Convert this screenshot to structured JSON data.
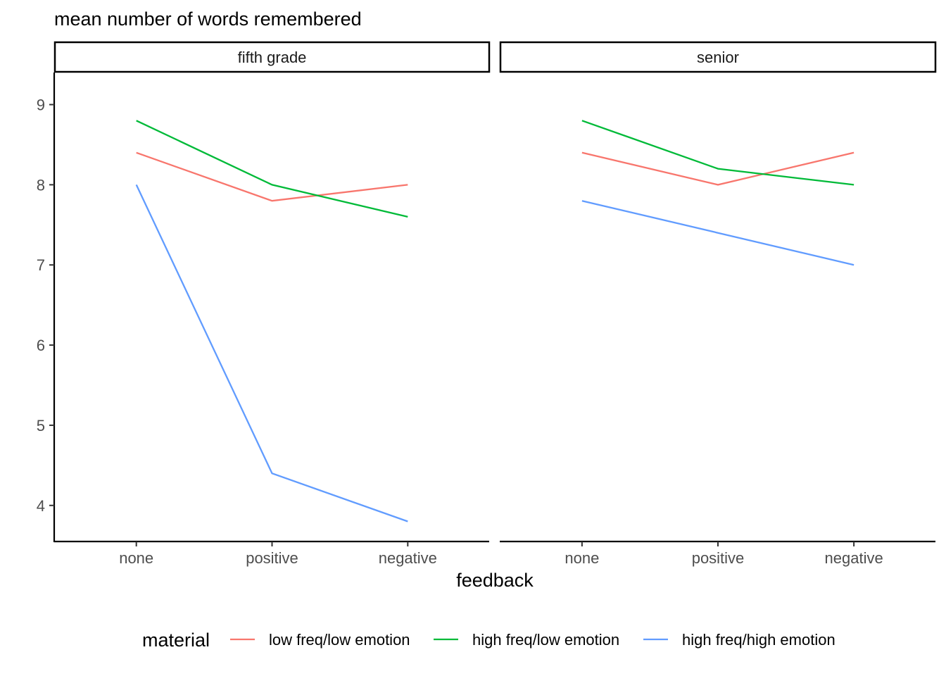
{
  "chart_data": {
    "type": "line",
    "title": "mean number of words remembered",
    "xlabel": "feedback",
    "ylabel": "",
    "ylim": [
      3.55,
      9.4
    ],
    "yticks": [
      4,
      5,
      6,
      7,
      8,
      9
    ],
    "categories": [
      "none",
      "positive",
      "negative"
    ],
    "facet_by": "",
    "legend": {
      "title": "material",
      "position": "bottom",
      "entries": [
        "low freq/low emotion",
        "high freq/low emotion",
        "high freq/high emotion"
      ]
    },
    "colors": {
      "low freq/low emotion": "#F8766D",
      "high freq/low emotion": "#00BA38",
      "high freq/high emotion": "#619CFF"
    },
    "panels": [
      {
        "strip": "fifth grade",
        "series": [
          {
            "name": "low freq/low emotion",
            "values": [
              8.4,
              7.8,
              8.0
            ]
          },
          {
            "name": "high freq/low emotion",
            "values": [
              8.8,
              8.0,
              7.6
            ]
          },
          {
            "name": "high freq/high emotion",
            "values": [
              8.0,
              4.4,
              3.8
            ]
          }
        ]
      },
      {
        "strip": "senior",
        "series": [
          {
            "name": "low freq/low emotion",
            "values": [
              8.4,
              8.0,
              8.4
            ]
          },
          {
            "name": "high freq/low emotion",
            "values": [
              8.8,
              8.2,
              8.0
            ]
          },
          {
            "name": "high freq/high emotion",
            "values": [
              7.8,
              7.4,
              7.0
            ]
          }
        ]
      }
    ],
    "grid": false
  }
}
